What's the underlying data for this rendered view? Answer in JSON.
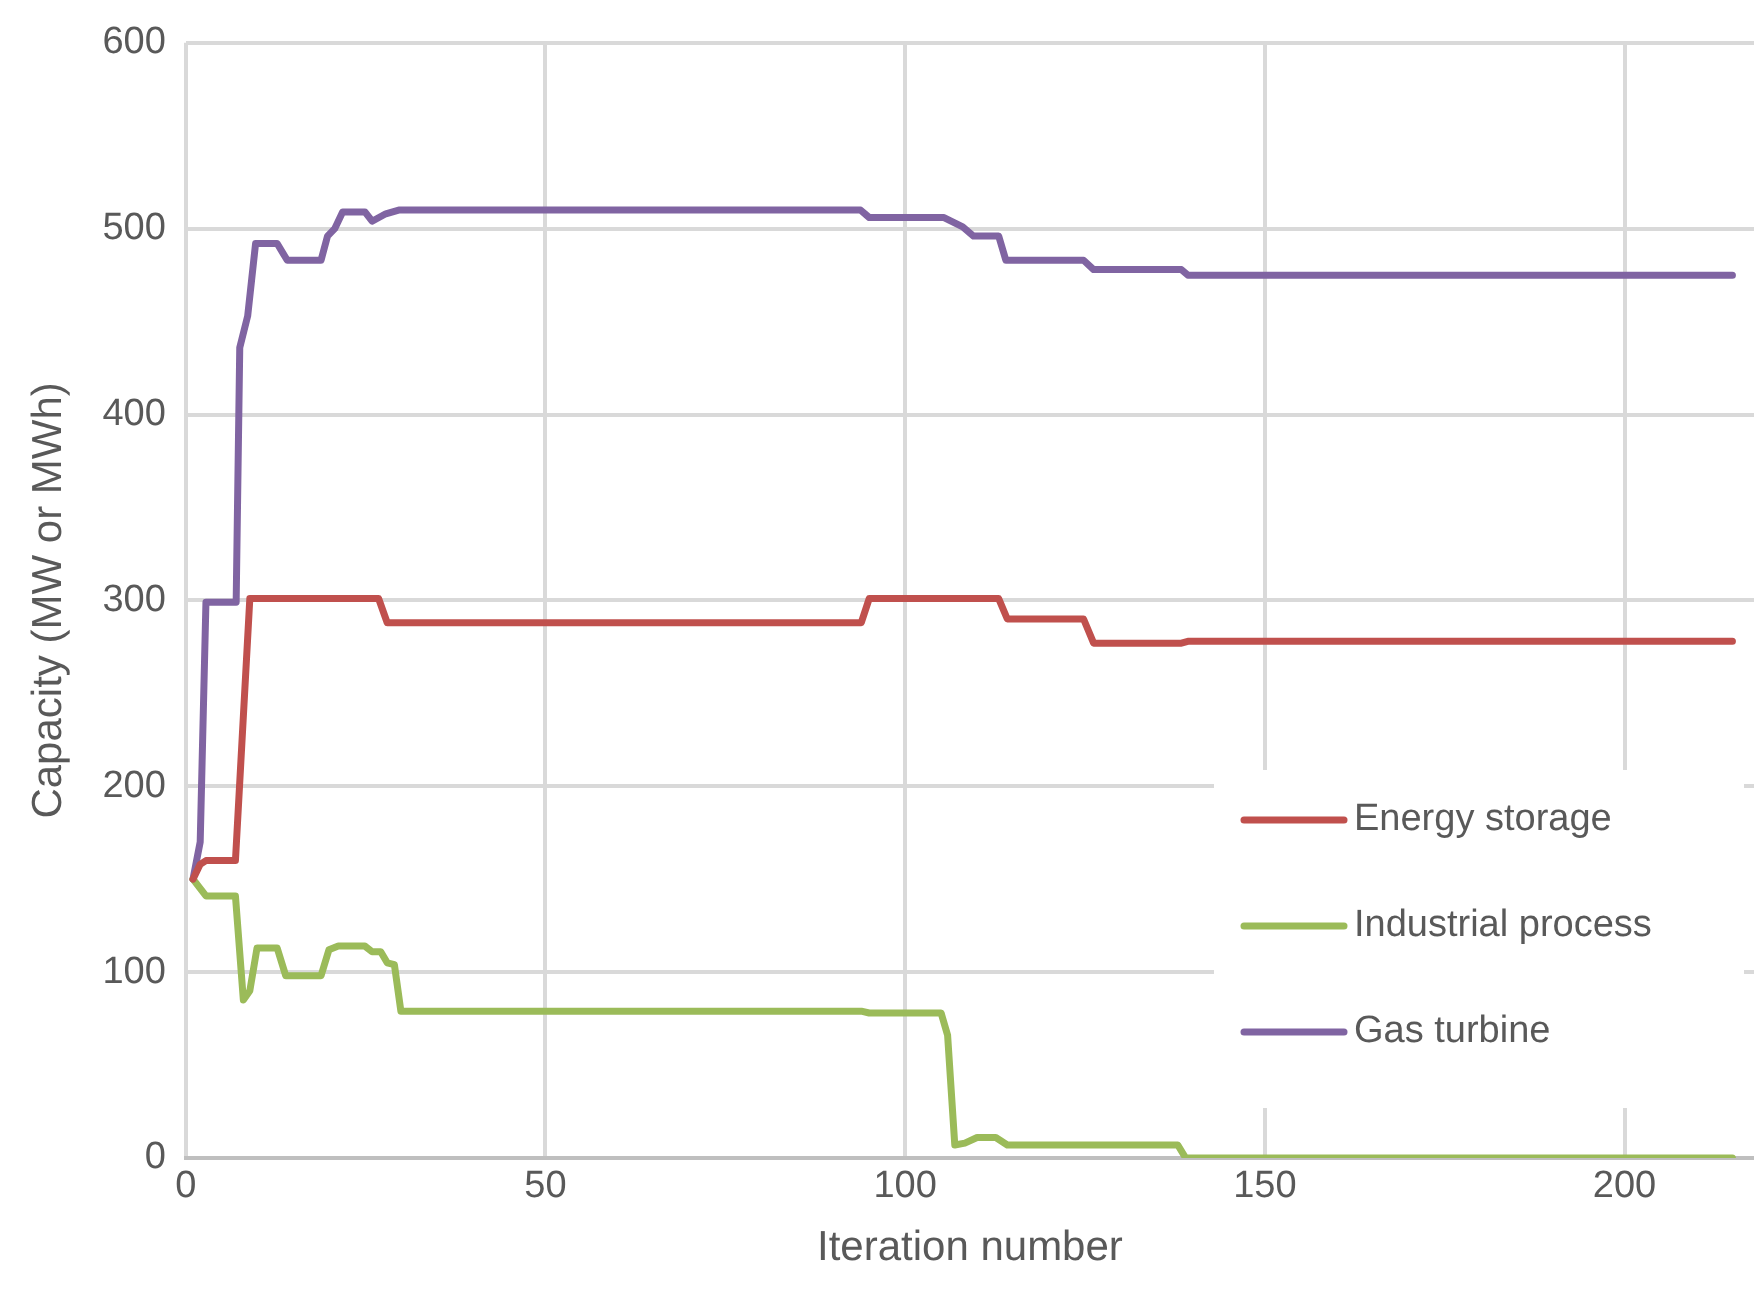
{
  "chart_data": {
    "type": "line",
    "xlabel": "Iteration number",
    "ylabel": "Capacity (MW or MWh)",
    "xlim": [
      0,
      218
    ],
    "xticks": [
      0,
      50,
      100,
      150,
      200
    ],
    "ylim": [
      0,
      600
    ],
    "yticks": [
      0,
      100,
      200,
      300,
      400,
      500,
      600
    ],
    "grid": true,
    "legend": "bottom right",
    "marker": "none",
    "line_style": "solid",
    "series": [
      {
        "name": "Energy storage",
        "color": "#c0504d",
        "x": [
          1,
          2,
          2.8,
          6.9,
          8.9,
          26.8,
          28,
          93.9,
          95,
          113,
          114.2,
          124.8,
          126.2,
          138.4,
          139.3,
          215
        ],
        "values": [
          150,
          158,
          160,
          160,
          301,
          301,
          288,
          288,
          301,
          301,
          290,
          290,
          277,
          277,
          278,
          278
        ]
      },
      {
        "name": "Industrial process",
        "color": "#9bbb59",
        "x": [
          1,
          2.8,
          6.9,
          8,
          8.9,
          9.9,
          12.7,
          13.9,
          18.8,
          19.9,
          21.2,
          24.9,
          25.9,
          27.1,
          28,
          29,
          29.9,
          93.9,
          95,
          105,
          105.9,
          106.9,
          108.3,
          110,
          112.6,
          114.2,
          137.9,
          139,
          215
        ],
        "values": [
          150,
          141,
          141,
          85,
          90,
          113,
          113,
          98,
          98,
          112,
          114,
          114,
          111,
          111,
          105,
          104,
          79,
          79,
          78,
          78,
          66,
          7,
          8,
          11,
          11,
          7,
          7,
          0,
          0
        ]
      },
      {
        "name": "Gas turbine",
        "color": "#8064a2",
        "x": [
          1,
          2,
          2.8,
          7,
          7.5,
          8.6,
          9.7,
          12.7,
          14.1,
          18.8,
          19.7,
          20.7,
          21.8,
          24.9,
          25.9,
          27.8,
          29.6,
          93.8,
          95,
          105.4,
          108,
          109.5,
          113,
          114,
          124.8,
          126.2,
          138.4,
          139.3,
          215
        ],
        "values": [
          150,
          170,
          299,
          299,
          436,
          453,
          492,
          492,
          483,
          483,
          496,
          500,
          509,
          509,
          504,
          508,
          510,
          510,
          506,
          506,
          501,
          496,
          496,
          483,
          483,
          478,
          478,
          475,
          475
        ]
      }
    ]
  }
}
